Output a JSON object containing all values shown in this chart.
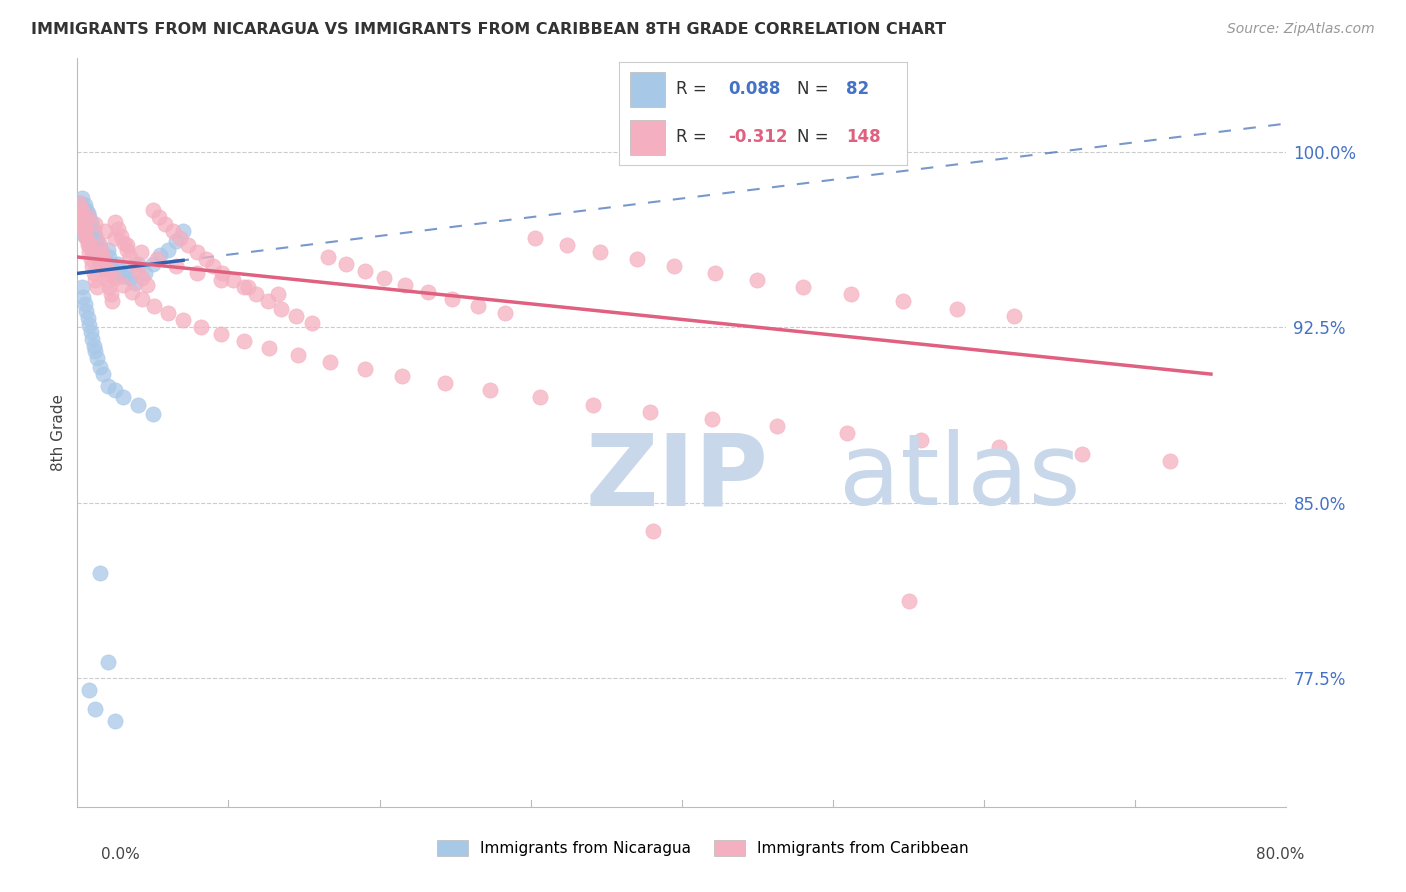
{
  "title": "IMMIGRANTS FROM NICARAGUA VS IMMIGRANTS FROM CARIBBEAN 8TH GRADE CORRELATION CHART",
  "source": "Source: ZipAtlas.com",
  "ylabel": "8th Grade",
  "ytick_labels": [
    "77.5%",
    "85.0%",
    "92.5%",
    "100.0%"
  ],
  "ytick_values": [
    0.775,
    0.85,
    0.925,
    1.0
  ],
  "xlim": [
    0.0,
    0.8
  ],
  "ylim": [
    0.72,
    1.04
  ],
  "blue_color": "#a8c8e8",
  "pink_color": "#f4afc0",
  "trendline_blue_color": "#3060b0",
  "trendline_pink_color": "#e06080",
  "blue_scatter_x": [
    0.001,
    0.002,
    0.002,
    0.003,
    0.003,
    0.004,
    0.004,
    0.004,
    0.005,
    0.005,
    0.005,
    0.006,
    0.006,
    0.006,
    0.007,
    0.007,
    0.007,
    0.008,
    0.008,
    0.008,
    0.009,
    0.009,
    0.009,
    0.01,
    0.01,
    0.01,
    0.011,
    0.011,
    0.012,
    0.012,
    0.013,
    0.013,
    0.014,
    0.014,
    0.015,
    0.015,
    0.016,
    0.017,
    0.018,
    0.019,
    0.02,
    0.021,
    0.022,
    0.023,
    0.025,
    0.027,
    0.028,
    0.03,
    0.032,
    0.035,
    0.038,
    0.04,
    0.045,
    0.05,
    0.055,
    0.06,
    0.065,
    0.07,
    0.003,
    0.004,
    0.005,
    0.006,
    0.007,
    0.008,
    0.009,
    0.01,
    0.011,
    0.012,
    0.013,
    0.015,
    0.017,
    0.02,
    0.025,
    0.03,
    0.04,
    0.05,
    0.015,
    0.02,
    0.025,
    0.012,
    0.008
  ],
  "blue_scatter_y": [
    0.975,
    0.978,
    0.972,
    0.98,
    0.968,
    0.975,
    0.971,
    0.965,
    0.977,
    0.972,
    0.968,
    0.975,
    0.97,
    0.966,
    0.974,
    0.969,
    0.963,
    0.972,
    0.967,
    0.962,
    0.97,
    0.965,
    0.96,
    0.968,
    0.963,
    0.958,
    0.966,
    0.961,
    0.964,
    0.959,
    0.962,
    0.957,
    0.96,
    0.955,
    0.958,
    0.953,
    0.956,
    0.954,
    0.952,
    0.95,
    0.958,
    0.955,
    0.952,
    0.95,
    0.948,
    0.952,
    0.949,
    0.947,
    0.948,
    0.946,
    0.944,
    0.952,
    0.948,
    0.952,
    0.956,
    0.958,
    0.962,
    0.966,
    0.942,
    0.938,
    0.935,
    0.932,
    0.929,
    0.926,
    0.923,
    0.92,
    0.917,
    0.915,
    0.912,
    0.908,
    0.905,
    0.9,
    0.898,
    0.895,
    0.892,
    0.888,
    0.82,
    0.782,
    0.757,
    0.762,
    0.77
  ],
  "pink_scatter_x": [
    0.001,
    0.002,
    0.003,
    0.004,
    0.005,
    0.006,
    0.007,
    0.008,
    0.009,
    0.01,
    0.011,
    0.012,
    0.013,
    0.015,
    0.016,
    0.017,
    0.018,
    0.019,
    0.02,
    0.021,
    0.022,
    0.023,
    0.025,
    0.027,
    0.029,
    0.031,
    0.033,
    0.035,
    0.038,
    0.04,
    0.043,
    0.046,
    0.05,
    0.054,
    0.058,
    0.063,
    0.068,
    0.073,
    0.079,
    0.085,
    0.09,
    0.096,
    0.103,
    0.11,
    0.118,
    0.126,
    0.135,
    0.145,
    0.155,
    0.166,
    0.178,
    0.19,
    0.203,
    0.217,
    0.232,
    0.248,
    0.265,
    0.283,
    0.303,
    0.324,
    0.346,
    0.37,
    0.395,
    0.422,
    0.45,
    0.48,
    0.512,
    0.546,
    0.582,
    0.62,
    0.002,
    0.004,
    0.006,
    0.008,
    0.01,
    0.013,
    0.016,
    0.02,
    0.025,
    0.03,
    0.036,
    0.043,
    0.051,
    0.06,
    0.07,
    0.082,
    0.095,
    0.11,
    0.127,
    0.146,
    0.167,
    0.19,
    0.215,
    0.243,
    0.273,
    0.306,
    0.341,
    0.379,
    0.42,
    0.463,
    0.509,
    0.558,
    0.61,
    0.665,
    0.723,
    0.003,
    0.007,
    0.012,
    0.018,
    0.025,
    0.033,
    0.042,
    0.053,
    0.065,
    0.079,
    0.095,
    0.113,
    0.133,
    0.381,
    0.55
  ],
  "pink_scatter_y": [
    0.978,
    0.975,
    0.972,
    0.969,
    0.966,
    0.963,
    0.96,
    0.957,
    0.954,
    0.951,
    0.948,
    0.945,
    0.942,
    0.96,
    0.957,
    0.954,
    0.951,
    0.948,
    0.945,
    0.942,
    0.939,
    0.936,
    0.97,
    0.967,
    0.964,
    0.961,
    0.958,
    0.955,
    0.952,
    0.949,
    0.946,
    0.943,
    0.975,
    0.972,
    0.969,
    0.966,
    0.963,
    0.96,
    0.957,
    0.954,
    0.951,
    0.948,
    0.945,
    0.942,
    0.939,
    0.936,
    0.933,
    0.93,
    0.927,
    0.955,
    0.952,
    0.949,
    0.946,
    0.943,
    0.94,
    0.937,
    0.934,
    0.931,
    0.963,
    0.96,
    0.957,
    0.954,
    0.951,
    0.948,
    0.945,
    0.942,
    0.939,
    0.936,
    0.933,
    0.93,
    0.97,
    0.967,
    0.964,
    0.961,
    0.958,
    0.955,
    0.952,
    0.949,
    0.946,
    0.943,
    0.94,
    0.937,
    0.934,
    0.931,
    0.928,
    0.925,
    0.922,
    0.919,
    0.916,
    0.913,
    0.91,
    0.907,
    0.904,
    0.901,
    0.898,
    0.895,
    0.892,
    0.889,
    0.886,
    0.883,
    0.88,
    0.877,
    0.874,
    0.871,
    0.868,
    0.975,
    0.972,
    0.969,
    0.966,
    0.963,
    0.96,
    0.957,
    0.954,
    0.951,
    0.948,
    0.945,
    0.942,
    0.939,
    0.838,
    0.808
  ]
}
